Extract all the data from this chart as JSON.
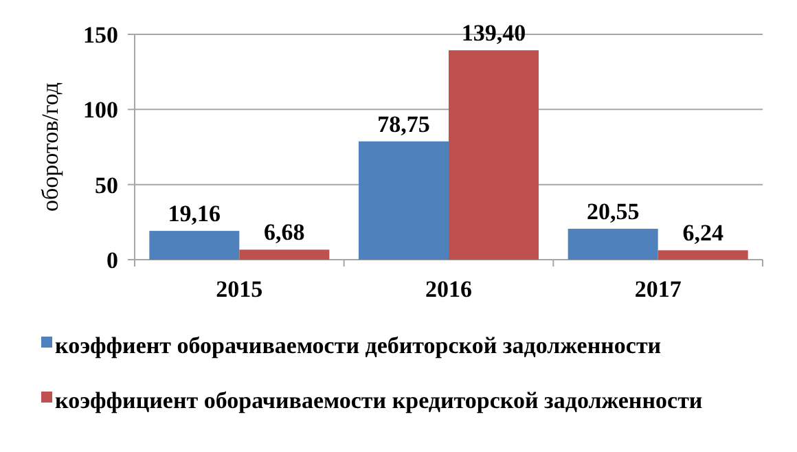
{
  "chart_data": {
    "type": "bar",
    "ylabel": "оборотов/год",
    "categories": [
      "2015",
      "2016",
      "2017"
    ],
    "series": [
      {
        "name": "коэффиент оборачиваемости дебиторской задолженности",
        "color": "#4f81bd",
        "values": [
          19.16,
          78.75,
          20.55
        ],
        "value_labels": [
          "19,16",
          "78,75",
          "20,55"
        ]
      },
      {
        "name": "коэффициент оборачиваемости кредиторской задолженности",
        "color": "#c0504d",
        "values": [
          6.68,
          139.4,
          6.24
        ],
        "value_labels": [
          "6,68",
          "139,40",
          "6,24"
        ]
      }
    ],
    "ylim": [
      0,
      150
    ],
    "yticks": [
      0,
      50,
      100,
      150
    ],
    "grid": "y",
    "legend": "bottom"
  }
}
